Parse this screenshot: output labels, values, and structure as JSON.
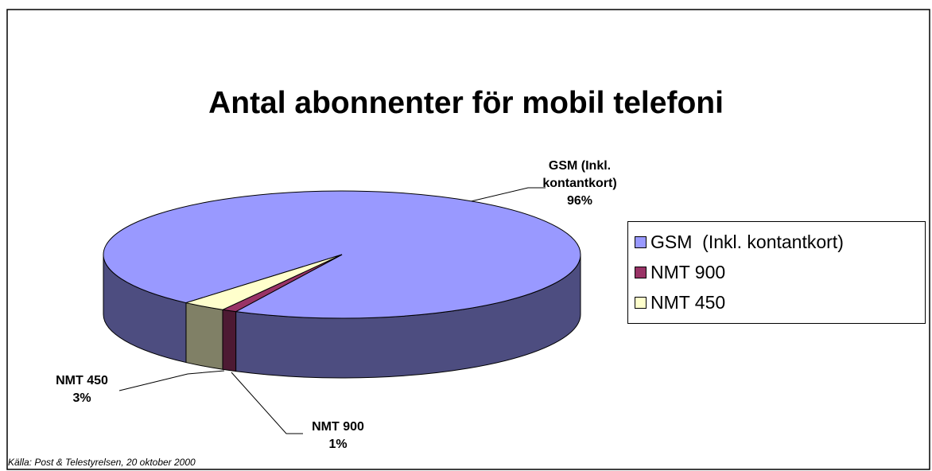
{
  "chart_data": {
    "type": "pie3d",
    "title": "Antal abonnenter för mobil telefoni",
    "categories": [
      "GSM  (Inkl. kontantkort)",
      "NMT 900",
      "NMT 450"
    ],
    "values": [
      96,
      1,
      3
    ],
    "value_labels": [
      "96%",
      "1%",
      "3%"
    ],
    "colors": [
      "#9999ff",
      "#993366",
      "#ffffcc"
    ],
    "legend": "right",
    "source": "Källa: Post & Telestyrelsen, 20 oktober 2000"
  }
}
